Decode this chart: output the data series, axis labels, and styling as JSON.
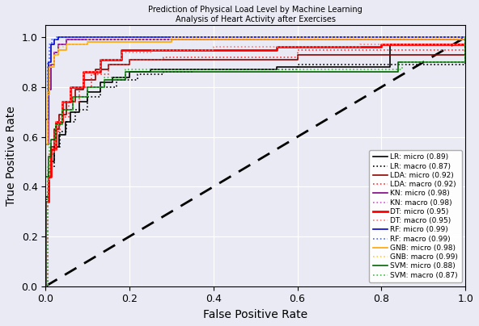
{
  "title": "Prediction of Physical Load Level by Machine Learning\nAnalysis of Heart Activity after Exercises",
  "xlabel": "False Positive Rate",
  "ylabel": "True Positive Rate",
  "bg_color": "#eaeaf4",
  "fig_color": "#eaeaf4",
  "legend_entries": [
    {
      "label": "LR: micro (0.89)",
      "color": "#000000",
      "linestyle": "solid",
      "lw": 1.2
    },
    {
      "label": "LR: macro (0.87)",
      "color": "#000000",
      "linestyle": "dotted",
      "lw": 1.2
    },
    {
      "label": "LDA: micro (0.92)",
      "color": "#8b0000",
      "linestyle": "solid",
      "lw": 1.2
    },
    {
      "label": "LDA: macro (0.92)",
      "color": "#ff3333",
      "linestyle": "dotted",
      "lw": 1.2
    },
    {
      "label": "KN: micro (0.98)",
      "color": "#800080",
      "linestyle": "solid",
      "lw": 1.2
    },
    {
      "label": "KN: macro (0.98)",
      "color": "#cc55cc",
      "linestyle": "dotted",
      "lw": 1.2
    },
    {
      "label": "DT: micro (0.95)",
      "color": "#ff0000",
      "linestyle": "solid",
      "lw": 2.0
    },
    {
      "label": "DT: macro (0.95)",
      "color": "#ff7777",
      "linestyle": "dotted",
      "lw": 1.2
    },
    {
      "label": "RF: micro (0.99)",
      "color": "#0000cc",
      "linestyle": "solid",
      "lw": 1.2
    },
    {
      "label": "RF: macro (0.99)",
      "color": "#4466ff",
      "linestyle": "dotted",
      "lw": 1.2
    },
    {
      "label": "GNB: micro (0.98)",
      "color": "#ffa500",
      "linestyle": "solid",
      "lw": 1.2
    },
    {
      "label": "GNB: macro (0.99)",
      "color": "#ffcc44",
      "linestyle": "dotted",
      "lw": 1.2
    },
    {
      "label": "SVM: micro (0.88)",
      "color": "#006400",
      "linestyle": "solid",
      "lw": 1.2
    },
    {
      "label": "SVM: macro (0.87)",
      "color": "#44bb44",
      "linestyle": "dotted",
      "lw": 1.2
    }
  ],
  "curves": {
    "LR_micro": {
      "fpr": [
        0.0,
        0.0,
        0.007,
        0.013,
        0.02,
        0.033,
        0.047,
        0.06,
        0.08,
        0.1,
        0.13,
        0.16,
        0.2,
        0.25,
        0.5,
        0.55,
        0.8,
        0.82,
        1.0
      ],
      "tpr": [
        0.0,
        0.36,
        0.44,
        0.5,
        0.56,
        0.61,
        0.66,
        0.7,
        0.74,
        0.78,
        0.82,
        0.84,
        0.86,
        0.87,
        0.87,
        0.88,
        0.88,
        0.97,
        1.0
      ],
      "color": "#000000",
      "linestyle": "solid",
      "lw": 1.2
    },
    "LR_macro": {
      "fpr": [
        0.0,
        0.005,
        0.01,
        0.02,
        0.035,
        0.05,
        0.07,
        0.1,
        0.13,
        0.17,
        0.22,
        0.28,
        0.35,
        0.6,
        1.0
      ],
      "tpr": [
        0.0,
        0.38,
        0.48,
        0.56,
        0.62,
        0.66,
        0.71,
        0.76,
        0.8,
        0.83,
        0.85,
        0.86,
        0.87,
        0.89,
        1.0
      ],
      "color": "#000000",
      "linestyle": "dotted",
      "lw": 1.2
    },
    "LDA_micro": {
      "fpr": [
        0.0,
        0.0,
        0.007,
        0.013,
        0.02,
        0.033,
        0.05,
        0.07,
        0.09,
        0.12,
        0.15,
        0.2,
        0.6,
        1.0
      ],
      "tpr": [
        0.0,
        0.35,
        0.46,
        0.56,
        0.63,
        0.69,
        0.74,
        0.79,
        0.83,
        0.87,
        0.89,
        0.91,
        0.93,
        1.0
      ],
      "color": "#8b0000",
      "linestyle": "solid",
      "lw": 1.2
    },
    "LDA_macro": {
      "fpr": [
        0.0,
        0.005,
        0.01,
        0.02,
        0.035,
        0.055,
        0.08,
        0.11,
        0.15,
        0.2,
        0.28,
        0.6,
        1.0
      ],
      "tpr": [
        0.0,
        0.42,
        0.53,
        0.62,
        0.68,
        0.74,
        0.8,
        0.85,
        0.89,
        0.91,
        0.92,
        0.95,
        1.0
      ],
      "color": "#ff3333",
      "linestyle": "dotted",
      "lw": 1.2
    },
    "KN_micro": {
      "fpr": [
        0.0,
        0.0,
        0.007,
        0.013,
        0.02,
        0.03,
        0.05,
        0.6,
        1.0
      ],
      "tpr": [
        0.0,
        0.57,
        0.79,
        0.89,
        0.94,
        0.97,
        0.99,
        0.99,
        1.0
      ],
      "color": "#800080",
      "linestyle": "solid",
      "lw": 1.2
    },
    "KN_macro": {
      "fpr": [
        0.0,
        0.0,
        0.005,
        0.01,
        0.02,
        0.03,
        0.05,
        0.6,
        1.0
      ],
      "tpr": [
        0.0,
        0.58,
        0.79,
        0.89,
        0.94,
        0.97,
        0.99,
        0.99,
        1.0
      ],
      "color": "#cc55cc",
      "linestyle": "dotted",
      "lw": 1.2
    },
    "DT_micro": {
      "fpr": [
        0.0,
        0.0,
        0.007,
        0.013,
        0.025,
        0.04,
        0.06,
        0.09,
        0.13,
        0.18,
        0.55,
        0.8,
        1.0
      ],
      "tpr": [
        0.0,
        0.34,
        0.44,
        0.55,
        0.66,
        0.74,
        0.8,
        0.86,
        0.91,
        0.95,
        0.96,
        0.97,
        1.0
      ],
      "color": "#ff0000",
      "linestyle": "solid",
      "lw": 2.0
    },
    "DT_macro": {
      "fpr": [
        0.0,
        0.005,
        0.01,
        0.025,
        0.04,
        0.06,
        0.09,
        0.13,
        0.18,
        0.25,
        0.4,
        0.75,
        1.0
      ],
      "tpr": [
        0.0,
        0.42,
        0.54,
        0.66,
        0.74,
        0.8,
        0.86,
        0.91,
        0.94,
        0.95,
        0.96,
        0.97,
        1.0
      ],
      "color": "#ff7777",
      "linestyle": "dotted",
      "lw": 1.2
    },
    "RF_micro": {
      "fpr": [
        0.0,
        0.0,
        0.007,
        0.013,
        0.02,
        0.03,
        1.0
      ],
      "tpr": [
        0.0,
        0.67,
        0.9,
        0.97,
        0.99,
        1.0,
        1.0
      ],
      "color": "#0000cc",
      "linestyle": "solid",
      "lw": 1.2
    },
    "RF_macro": {
      "fpr": [
        0.0,
        0.0,
        0.005,
        0.01,
        0.015,
        0.025,
        1.0
      ],
      "tpr": [
        0.0,
        0.67,
        0.9,
        0.97,
        0.99,
        1.0,
        1.0
      ],
      "color": "#4466ff",
      "linestyle": "dotted",
      "lw": 1.2
    },
    "GNB_micro": {
      "fpr": [
        0.0,
        0.0,
        0.005,
        0.01,
        0.02,
        0.03,
        0.05,
        0.1,
        0.3,
        1.0
      ],
      "tpr": [
        0.0,
        0.57,
        0.77,
        0.88,
        0.93,
        0.95,
        0.97,
        0.98,
        0.99,
        1.0
      ],
      "color": "#ffa500",
      "linestyle": "solid",
      "lw": 1.2
    },
    "GNB_macro": {
      "fpr": [
        0.0,
        0.0,
        0.005,
        0.01,
        0.02,
        0.03,
        0.05,
        0.1,
        0.3,
        1.0
      ],
      "tpr": [
        0.0,
        0.58,
        0.78,
        0.88,
        0.93,
        0.96,
        0.97,
        0.99,
        1.0,
        1.0
      ],
      "color": "#ffcc44",
      "linestyle": "dotted",
      "lw": 1.2
    },
    "SVM_micro": {
      "fpr": [
        0.0,
        0.0,
        0.007,
        0.013,
        0.025,
        0.04,
        0.065,
        0.1,
        0.14,
        0.19,
        0.8,
        0.84,
        1.0
      ],
      "tpr": [
        0.0,
        0.44,
        0.52,
        0.59,
        0.65,
        0.71,
        0.76,
        0.8,
        0.83,
        0.86,
        0.86,
        0.9,
        1.0
      ],
      "color": "#006400",
      "linestyle": "solid",
      "lw": 1.2
    },
    "SVM_macro": {
      "fpr": [
        0.0,
        0.005,
        0.01,
        0.025,
        0.04,
        0.065,
        0.1,
        0.14,
        0.19,
        0.8,
        0.85,
        1.0
      ],
      "tpr": [
        0.0,
        0.48,
        0.58,
        0.65,
        0.71,
        0.76,
        0.8,
        0.84,
        0.87,
        0.87,
        0.9,
        1.0
      ],
      "color": "#44bb44",
      "linestyle": "dotted",
      "lw": 1.2
    }
  },
  "order": [
    "LR_micro",
    "LR_macro",
    "LDA_micro",
    "LDA_macro",
    "KN_micro",
    "KN_macro",
    "DT_micro",
    "DT_macro",
    "RF_micro",
    "RF_macro",
    "GNB_micro",
    "GNB_macro",
    "SVM_micro",
    "SVM_macro"
  ]
}
